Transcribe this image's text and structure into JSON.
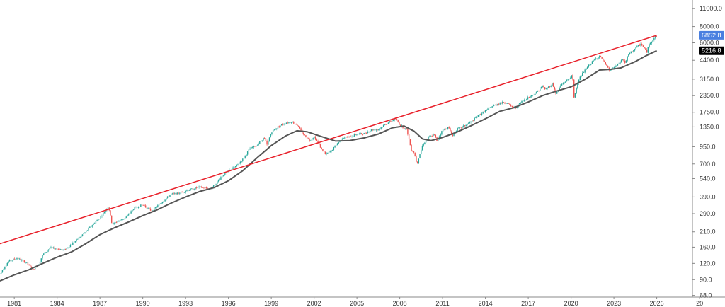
{
  "chart_data": {
    "type": "line",
    "title": "",
    "xlabel": "",
    "ylabel": "",
    "y_scale": "log",
    "grid": false,
    "legend": "none",
    "x_ticks": [
      "1981",
      "1984",
      "1987",
      "1990",
      "1993",
      "1996",
      "1999",
      "2002",
      "2005",
      "2008",
      "2011",
      "2014",
      "2017",
      "2020",
      "2023",
      "2026",
      "20"
    ],
    "y_ticks": [
      "68.0",
      "90.0",
      "120.0",
      "160.0",
      "210.0",
      "290.0",
      "390.0",
      "540.0",
      "700.0",
      "950.0",
      "1350.0",
      "1750.0",
      "2350.0",
      "3150.0",
      "4400.0",
      "6000.0",
      "8000.0",
      "11000.0"
    ],
    "xlim": [
      1980.0,
      2028.5
    ],
    "ylim": [
      66,
      12500
    ],
    "price_label": "6852.8",
    "ma_label": "5216.8",
    "colors": {
      "up": "#26a69a",
      "down": "#ef5350",
      "price_badge": "#4a7fe0",
      "ma": "#555555",
      "ma_badge": "#000000",
      "trendline": "#e8202a"
    },
    "series": [
      {
        "values_kind": "price",
        "points": [
          [
            1980.0,
            100
          ],
          [
            1980.6,
            125
          ],
          [
            1981.2,
            132
          ],
          [
            1981.8,
            122
          ],
          [
            1982.3,
            108
          ],
          [
            1982.7,
            118
          ],
          [
            1983.0,
            140
          ],
          [
            1983.5,
            158
          ],
          [
            1984.0,
            156
          ],
          [
            1984.5,
            152
          ],
          [
            1985.0,
            168
          ],
          [
            1985.5,
            188
          ],
          [
            1986.0,
            210
          ],
          [
            1986.5,
            240
          ],
          [
            1987.0,
            270
          ],
          [
            1987.6,
            330
          ],
          [
            1987.85,
            240
          ],
          [
            1988.3,
            255
          ],
          [
            1988.8,
            270
          ],
          [
            1989.4,
            320
          ],
          [
            1990.0,
            340
          ],
          [
            1990.6,
            305
          ],
          [
            1991.0,
            330
          ],
          [
            1991.5,
            370
          ],
          [
            1992.0,
            410
          ],
          [
            1992.5,
            415
          ],
          [
            1993.0,
            435
          ],
          [
            1993.5,
            450
          ],
          [
            1994.0,
            465
          ],
          [
            1994.6,
            450
          ],
          [
            1995.0,
            475
          ],
          [
            1995.5,
            560
          ],
          [
            1996.0,
            620
          ],
          [
            1996.5,
            670
          ],
          [
            1997.0,
            760
          ],
          [
            1997.5,
            920
          ],
          [
            1998.0,
            980
          ],
          [
            1998.5,
            1120
          ],
          [
            1998.7,
            980
          ],
          [
            1999.0,
            1230
          ],
          [
            1999.5,
            1360
          ],
          [
            2000.0,
            1450
          ],
          [
            2000.4,
            1480
          ],
          [
            2000.8,
            1400
          ],
          [
            2001.2,
            1200
          ],
          [
            2001.7,
            1060
          ],
          [
            2002.0,
            1140
          ],
          [
            2002.5,
            920
          ],
          [
            2002.8,
            830
          ],
          [
            2003.2,
            880
          ],
          [
            2003.6,
            1000
          ],
          [
            2004.0,
            1120
          ],
          [
            2004.5,
            1130
          ],
          [
            2005.0,
            1190
          ],
          [
            2005.5,
            1200
          ],
          [
            2006.0,
            1280
          ],
          [
            2006.5,
            1290
          ],
          [
            2007.0,
            1420
          ],
          [
            2007.7,
            1560
          ],
          [
            2008.0,
            1400
          ],
          [
            2008.5,
            1280
          ],
          [
            2008.8,
            900
          ],
          [
            2009.0,
            860
          ],
          [
            2009.2,
            700
          ],
          [
            2009.6,
            980
          ],
          [
            2010.0,
            1120
          ],
          [
            2010.4,
            1180
          ],
          [
            2010.6,
            1060
          ],
          [
            2011.0,
            1280
          ],
          [
            2011.4,
            1340
          ],
          [
            2011.7,
            1150
          ],
          [
            2012.0,
            1300
          ],
          [
            2012.5,
            1370
          ],
          [
            2013.0,
            1480
          ],
          [
            2013.5,
            1650
          ],
          [
            2014.0,
            1800
          ],
          [
            2014.5,
            1950
          ],
          [
            2015.0,
            2060
          ],
          [
            2015.5,
            2090
          ],
          [
            2015.8,
            1930
          ],
          [
            2016.1,
            1890
          ],
          [
            2016.5,
            2100
          ],
          [
            2017.0,
            2280
          ],
          [
            2017.5,
            2450
          ],
          [
            2018.0,
            2780
          ],
          [
            2018.2,
            2620
          ],
          [
            2018.7,
            2900
          ],
          [
            2018.95,
            2420
          ],
          [
            2019.3,
            2850
          ],
          [
            2019.8,
            3140
          ],
          [
            2020.1,
            3380
          ],
          [
            2020.2,
            2240
          ],
          [
            2020.5,
            3100
          ],
          [
            2020.9,
            3600
          ],
          [
            2021.3,
            4100
          ],
          [
            2021.8,
            4600
          ],
          [
            2022.0,
            4750
          ],
          [
            2022.4,
            4100
          ],
          [
            2022.7,
            3650
          ],
          [
            2022.9,
            3800
          ],
          [
            2023.3,
            4100
          ],
          [
            2023.6,
            4500
          ],
          [
            2023.8,
            4180
          ],
          [
            2024.0,
            4850
          ],
          [
            2024.5,
            5450
          ],
          [
            2024.9,
            5900
          ],
          [
            2025.3,
            5100
          ],
          [
            2025.5,
            5950
          ],
          [
            2025.8,
            6500
          ],
          [
            2026.0,
            6852.8
          ]
        ]
      },
      {
        "name": "",
        "values_kind": "moving_average",
        "points": [
          [
            1980.0,
            88
          ],
          [
            1981.0,
            98
          ],
          [
            1982.0,
            107
          ],
          [
            1983.0,
            120
          ],
          [
            1984.0,
            134
          ],
          [
            1985.0,
            147
          ],
          [
            1986.0,
            170
          ],
          [
            1987.0,
            200
          ],
          [
            1988.0,
            225
          ],
          [
            1989.0,
            250
          ],
          [
            1990.0,
            280
          ],
          [
            1991.0,
            310
          ],
          [
            1992.0,
            350
          ],
          [
            1993.0,
            390
          ],
          [
            1994.0,
            430
          ],
          [
            1995.0,
            460
          ],
          [
            1996.0,
            520
          ],
          [
            1997.0,
            620
          ],
          [
            1998.0,
            780
          ],
          [
            1999.0,
            970
          ],
          [
            2000.0,
            1150
          ],
          [
            2000.8,
            1260
          ],
          [
            2001.5,
            1240
          ],
          [
            2002.5,
            1140
          ],
          [
            2003.5,
            1050
          ],
          [
            2004.5,
            1060
          ],
          [
            2005.5,
            1110
          ],
          [
            2006.5,
            1190
          ],
          [
            2007.5,
            1330
          ],
          [
            2008.3,
            1370
          ],
          [
            2009.0,
            1250
          ],
          [
            2009.6,
            1090
          ],
          [
            2010.2,
            1060
          ],
          [
            2011.0,
            1120
          ],
          [
            2012.0,
            1230
          ],
          [
            2013.0,
            1380
          ],
          [
            2014.0,
            1560
          ],
          [
            2015.0,
            1780
          ],
          [
            2016.0,
            1900
          ],
          [
            2017.0,
            2100
          ],
          [
            2018.0,
            2350
          ],
          [
            2019.0,
            2550
          ],
          [
            2020.0,
            2750
          ],
          [
            2021.0,
            3150
          ],
          [
            2022.0,
            3700
          ],
          [
            2022.8,
            3750
          ],
          [
            2023.5,
            3850
          ],
          [
            2024.5,
            4300
          ],
          [
            2025.3,
            4800
          ],
          [
            2026.0,
            5216.8
          ]
        ]
      },
      {
        "name": "",
        "values_kind": "trendline",
        "points": [
          [
            1980.0,
            170
          ],
          [
            2026.0,
            6852.8
          ]
        ]
      }
    ]
  }
}
